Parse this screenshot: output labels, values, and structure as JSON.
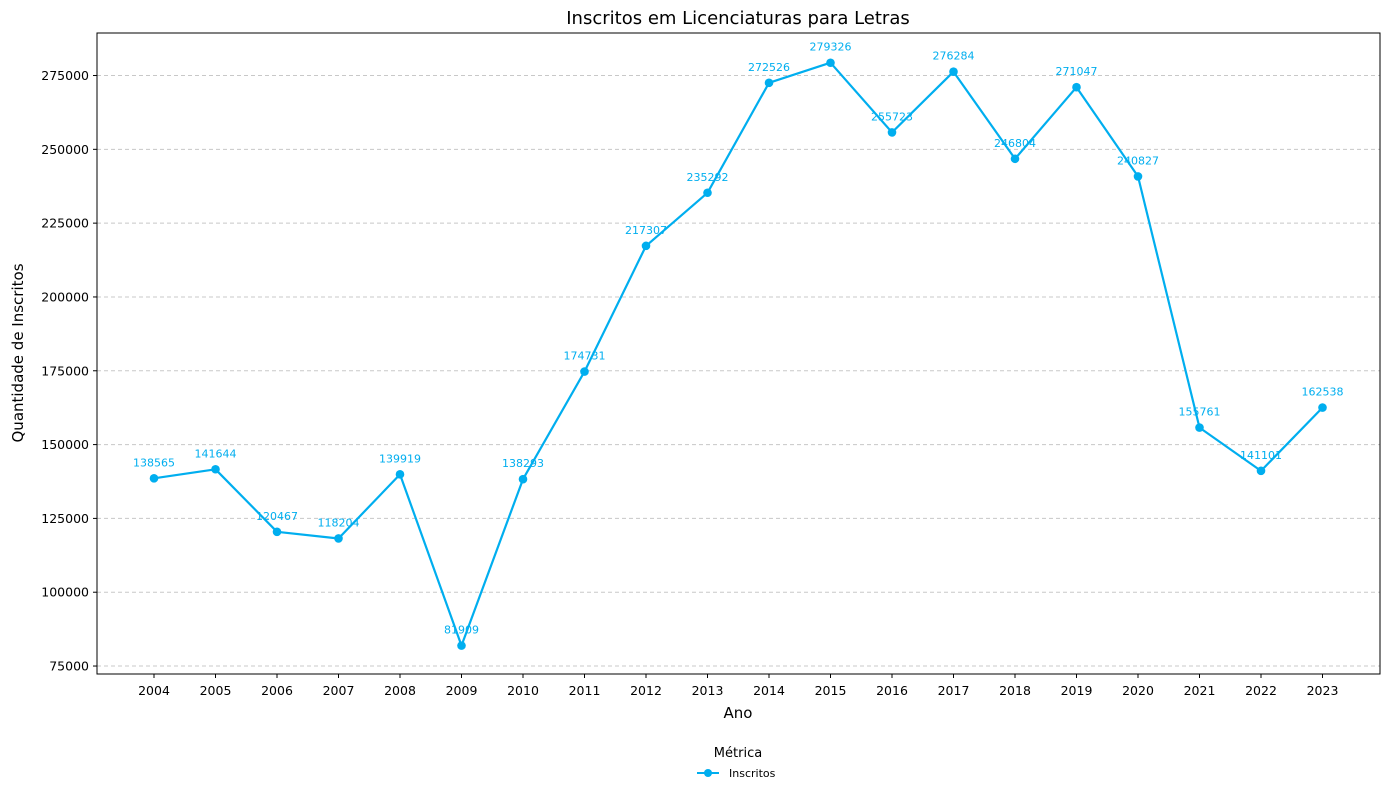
{
  "chart_data": {
    "type": "line",
    "title": "Inscritos em Licenciaturas para Letras",
    "xlabel": "Ano",
    "ylabel": "Quantidade de Inscritos",
    "x": [
      "2004",
      "2005",
      "2006",
      "2007",
      "2008",
      "2009",
      "2010",
      "2011",
      "2012",
      "2013",
      "2014",
      "2015",
      "2016",
      "2017",
      "2018",
      "2019",
      "2020",
      "2021",
      "2022",
      "2023"
    ],
    "series": [
      {
        "name": "Inscritos",
        "color": "#00AEEF",
        "values": [
          138565,
          141644,
          120467,
          118204,
          139919,
          81909,
          138293,
          174731,
          217307,
          235292,
          272526,
          279326,
          255723,
          276284,
          246804,
          271047,
          240827,
          155761,
          141101,
          162538
        ]
      }
    ],
    "ylim": [
      72300,
      289400
    ],
    "yticks": [
      75000,
      100000,
      125000,
      150000,
      175000,
      200000,
      225000,
      250000,
      275000
    ],
    "grid": "horizontal dashed",
    "legend": {
      "title": "Métrica",
      "placement": "bottom-center"
    }
  }
}
